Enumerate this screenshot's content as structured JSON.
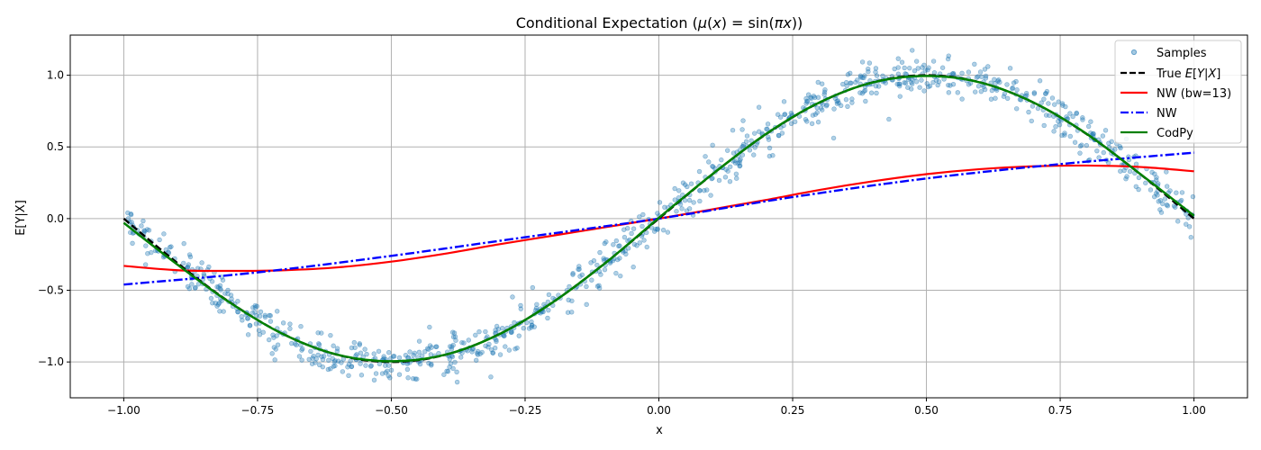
{
  "chart_data": {
    "type": "scatter",
    "title": "Conditional Expectation (μ(x) = sin(πx))",
    "xlabel": "x",
    "ylabel": "E[Y|X]",
    "xlim": [
      -1.1,
      1.1
    ],
    "ylim": [
      -1.25,
      1.28
    ],
    "xticks": [
      -1.0,
      -0.75,
      -0.5,
      -0.25,
      0.0,
      0.25,
      0.5,
      0.75,
      1.0
    ],
    "xtick_labels": [
      "−1.00",
      "−0.75",
      "−0.50",
      "−0.25",
      "0.00",
      "0.25",
      "0.50",
      "0.75",
      "1.00"
    ],
    "yticks": [
      -1.0,
      -0.5,
      0.0,
      0.5,
      1.0
    ],
    "ytick_labels": [
      "−1.0",
      "−0.5",
      "0.0",
      "0.5",
      "1.0"
    ],
    "grid": true,
    "legend_position": "top-right",
    "samples": {
      "name": "Samples",
      "color": "#1f77b4",
      "count": 1000,
      "noise_std": 0.07,
      "x_range": [
        -1.0,
        1.0
      ]
    },
    "series": [
      {
        "name": "True E[Y|X]",
        "color": "#000000",
        "style": "dashed",
        "x": [
          -1.0,
          -0.9,
          -0.8,
          -0.7,
          -0.6,
          -0.5,
          -0.4,
          -0.3,
          -0.2,
          -0.1,
          0.0,
          0.1,
          0.2,
          0.3,
          0.4,
          0.5,
          0.6,
          0.7,
          0.8,
          0.9,
          1.0
        ],
        "y": [
          0.0,
          -0.309,
          -0.588,
          -0.809,
          -0.951,
          -1.0,
          -0.951,
          -0.809,
          -0.588,
          -0.309,
          0.0,
          0.309,
          0.588,
          0.809,
          0.951,
          1.0,
          0.951,
          0.809,
          0.588,
          0.309,
          0.0
        ]
      },
      {
        "name": "NW (bw=13)",
        "color": "#ff0000",
        "style": "solid",
        "x": [
          -1.0,
          -0.9,
          -0.8,
          -0.7,
          -0.6,
          -0.5,
          -0.4,
          -0.3,
          -0.2,
          -0.1,
          0.0,
          0.1,
          0.2,
          0.3,
          0.4,
          0.5,
          0.6,
          0.7,
          0.8,
          0.9,
          1.0
        ],
        "y": [
          -0.33,
          -0.36,
          -0.365,
          -0.36,
          -0.34,
          -0.3,
          -0.245,
          -0.18,
          -0.12,
          -0.06,
          0.0,
          0.065,
          0.13,
          0.2,
          0.26,
          0.31,
          0.345,
          0.365,
          0.37,
          0.36,
          0.33
        ]
      },
      {
        "name": "NW",
        "color": "#0000ff",
        "style": "dashdot",
        "x": [
          -1.0,
          -0.75,
          -0.5,
          -0.25,
          0.0,
          0.25,
          0.5,
          0.75,
          1.0
        ],
        "y": [
          -0.46,
          -0.375,
          -0.26,
          -0.13,
          0.0,
          0.15,
          0.28,
          0.38,
          0.46
        ]
      },
      {
        "name": "CodPy",
        "color": "#008000",
        "style": "solid",
        "x": [
          -1.0,
          -0.9,
          -0.8,
          -0.7,
          -0.6,
          -0.5,
          -0.4,
          -0.3,
          -0.2,
          -0.1,
          0.0,
          0.1,
          0.2,
          0.3,
          0.4,
          0.5,
          0.6,
          0.7,
          0.8,
          0.9,
          1.0
        ],
        "y": [
          -0.03,
          -0.32,
          -0.59,
          -0.81,
          -0.95,
          -0.995,
          -0.95,
          -0.81,
          -0.588,
          -0.31,
          0.005,
          0.31,
          0.59,
          0.81,
          0.95,
          0.995,
          0.95,
          0.81,
          0.59,
          0.31,
          0.02
        ]
      }
    ]
  }
}
